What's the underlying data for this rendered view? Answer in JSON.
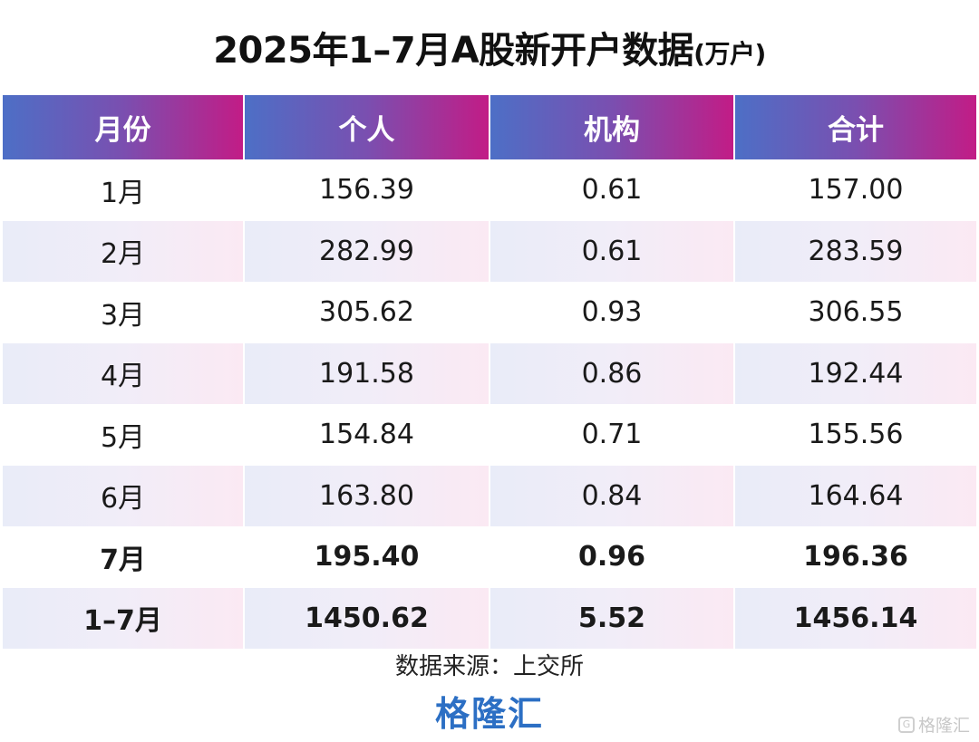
{
  "title": {
    "main": "2025年1–7月A股新开户数据",
    "unit": "(万户)"
  },
  "table": {
    "headers": [
      "月份",
      "个人",
      "机构",
      "合计"
    ],
    "rows": [
      [
        "1月",
        "156.39",
        "0.61",
        "157.00"
      ],
      [
        "2月",
        "282.99",
        "0.61",
        "283.59"
      ],
      [
        "3月",
        "305.62",
        "0.93",
        "306.55"
      ],
      [
        "4月",
        "191.58",
        "0.86",
        "192.44"
      ],
      [
        "5月",
        "154.84",
        "0.71",
        "155.56"
      ],
      [
        "6月",
        "163.80",
        "0.84",
        "164.64"
      ],
      [
        "7月",
        "195.40",
        "0.96",
        "196.36"
      ],
      [
        "1–7月",
        "1450.62",
        "5.52",
        "1456.14"
      ]
    ]
  },
  "source": "数据来源：上交所",
  "brand": "格隆汇",
  "watermark": {
    "text": "格隆汇",
    "icon": "gelonghui-logo-icon"
  },
  "colors": {
    "header_gradient_start": "#4d6fc6",
    "header_gradient_end": "#c21c86",
    "brand": "#2c6fc4"
  }
}
